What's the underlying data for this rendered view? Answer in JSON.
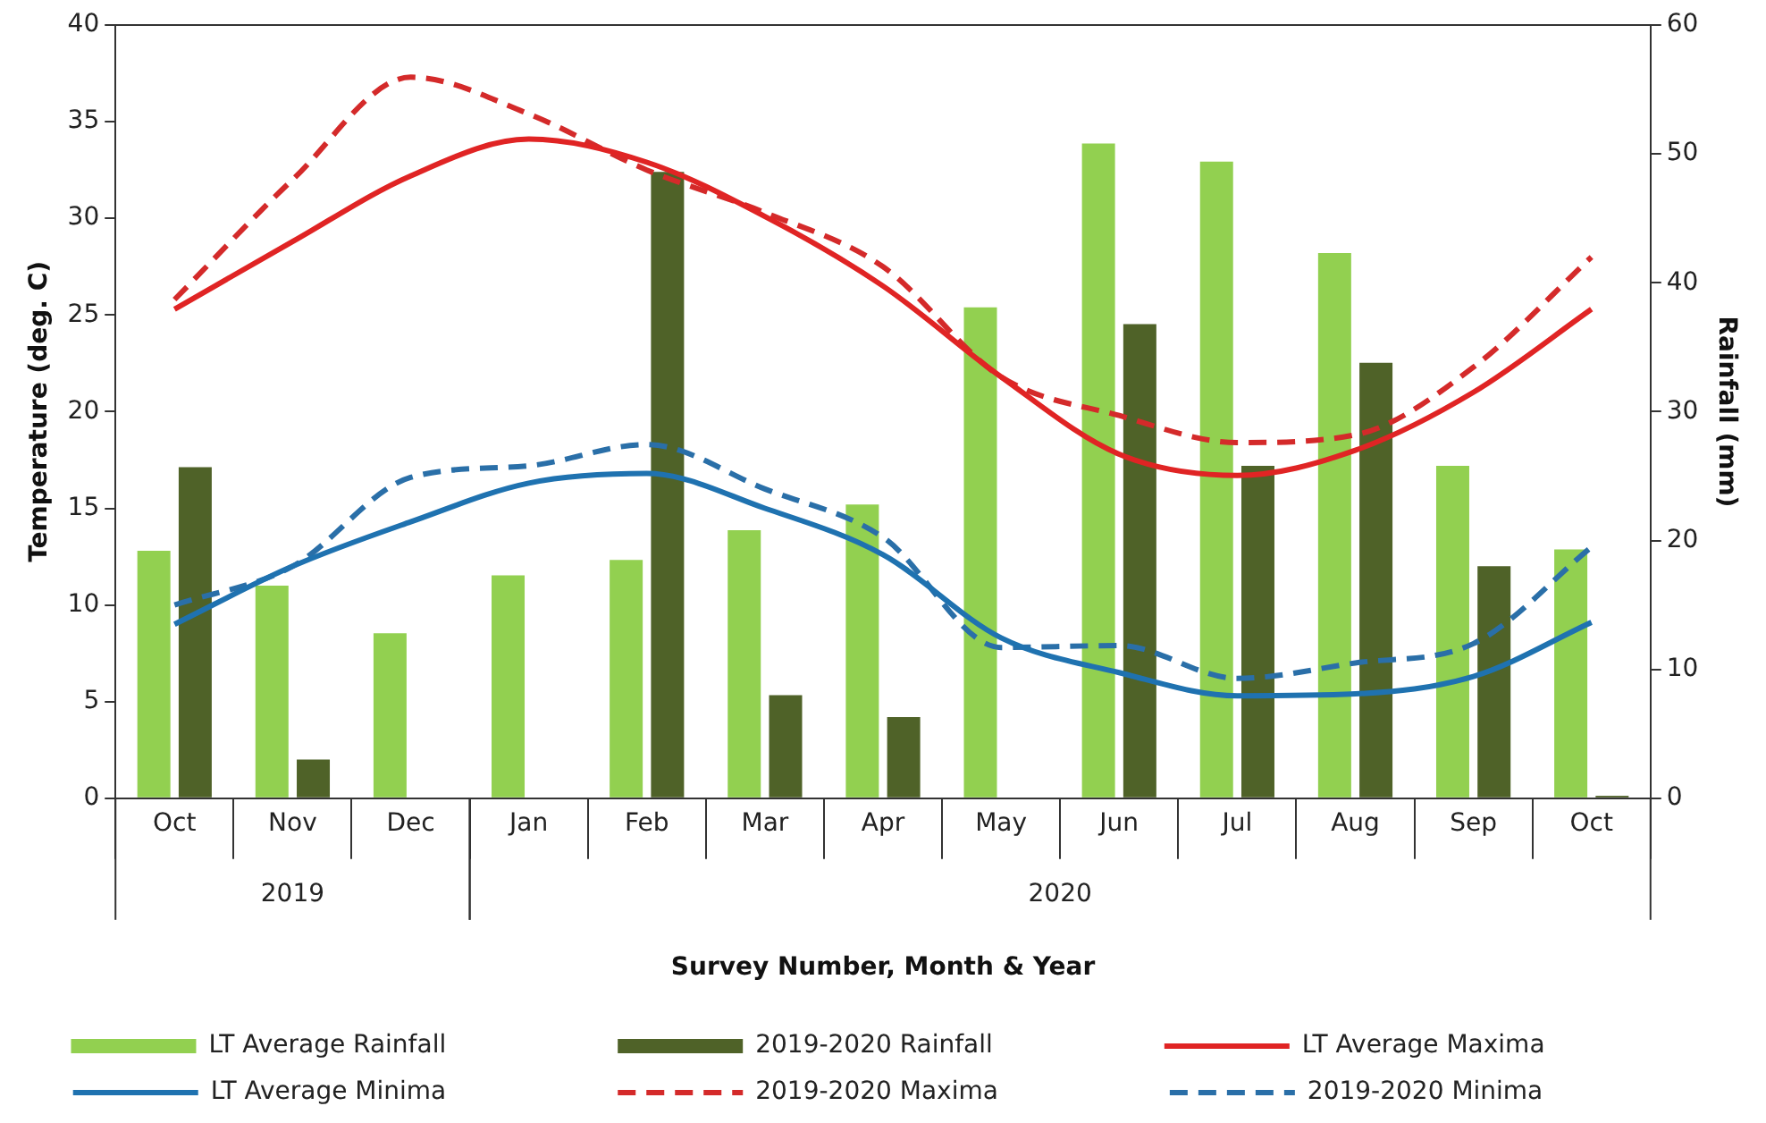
{
  "chart_data": {
    "type": "bar",
    "xlabel": "Survey Number, Month & Year",
    "ylabel": "Temperature (deg. C)",
    "y2label": "Rainfall (mm)",
    "categories": [
      "Oct",
      "Nov",
      "Dec",
      "Jan",
      "Feb",
      "Mar",
      "Apr",
      "May",
      "Jun",
      "Jul",
      "Aug",
      "Sep",
      "Oct"
    ],
    "series": [
      {
        "name": "LT Average Rainfall",
        "type": "bar",
        "axis": "y2",
        "color": "#92d050",
        "values": [
          19.2,
          16.5,
          12.8,
          17.3,
          18.5,
          20.8,
          22.8,
          38.1,
          50.8,
          49.4,
          42.3,
          25.8,
          19.3
        ]
      },
      {
        "name": "2019-2020 Rainfall",
        "type": "bar",
        "axis": "y2",
        "color": "#4f6228",
        "values": [
          25.7,
          3,
          null,
          null,
          48.6,
          8,
          6.3,
          null,
          36.8,
          25.8,
          33.8,
          18,
          0.2
        ]
      },
      {
        "name": "LT Average Maxima",
        "type": "line",
        "line_style": "solid",
        "color": "#e02424",
        "values": [
          25.3,
          28.8,
          32.2,
          34.1,
          32.9,
          30.1,
          26.5,
          21.8,
          17.8,
          16.7,
          18,
          21,
          25.3
        ]
      },
      {
        "name": "LT Average Minima",
        "type": "line",
        "line_style": "solid",
        "color": "#1f72b0",
        "values": [
          9,
          12,
          14.3,
          16.3,
          16.8,
          15,
          12.6,
          8.3,
          6.5,
          5.3,
          5.4,
          6.3,
          9.1
        ]
      },
      {
        "name": "2019-2020 Maxima",
        "type": "line",
        "line_style": "dashed",
        "color": "#d42a2a",
        "values": [
          25.8,
          32,
          37.3,
          35.4,
          32.5,
          30.3,
          27.5,
          21.8,
          19.8,
          18.4,
          18.8,
          22.3,
          28
        ]
      },
      {
        "name": "2019-2020 Minima",
        "type": "line",
        "line_style": "dashed",
        "color": "#2a6fa8",
        "values": [
          10,
          12,
          16.6,
          17.2,
          18.3,
          16,
          13.5,
          7.8,
          7.9,
          6.2,
          7,
          8,
          13
        ]
      }
    ],
    "ylim": [
      0,
      40
    ],
    "yticks": [
      0,
      5,
      10,
      15,
      20,
      25,
      30,
      35,
      40
    ],
    "y2lim": [
      0,
      60
    ],
    "y2ticks": [
      0,
      10,
      20,
      30,
      40,
      50,
      60
    ],
    "annotations": [
      "2019",
      "2020"
    ],
    "grid": false,
    "legend": "bottom",
    "marker": "none"
  }
}
